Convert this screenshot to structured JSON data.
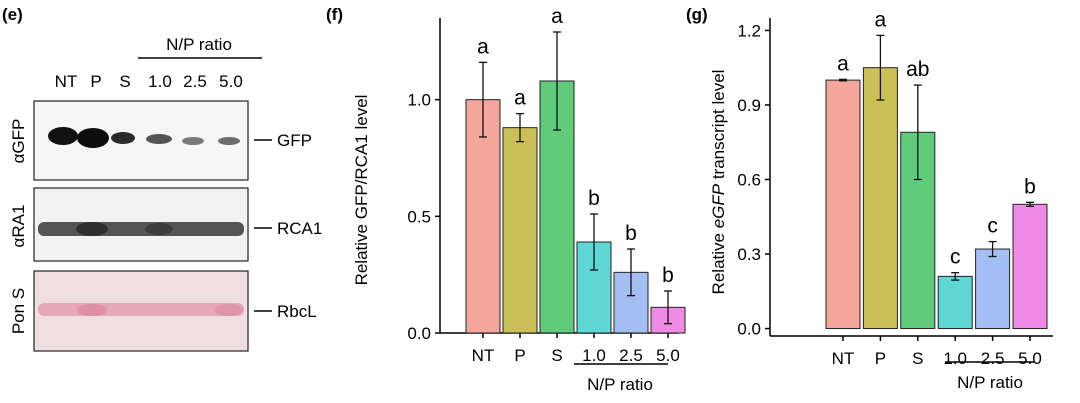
{
  "panels": {
    "e": {
      "label": "(e)",
      "ratio_header": "N/P ratio",
      "lanes": [
        "NT",
        "P",
        "S",
        "1.0",
        "2.5",
        "5.0"
      ],
      "blots": [
        {
          "row_label": "αGFP",
          "band_label": "GFP"
        },
        {
          "row_label": "αRA1",
          "band_label": "RCA1"
        },
        {
          "row_label": "Pon S",
          "band_label": "RbcL"
        }
      ]
    },
    "f": {
      "label": "(f)"
    },
    "g": {
      "label": "(g)",
      "ylabel_pre": "Relative ",
      "ylabel_italic": "eGFP",
      "ylabel_post": " transcript level"
    }
  },
  "colors": {
    "NT": "#f4a59c",
    "P": "#cbbf57",
    "S": "#5fcb7b",
    "1.0": "#5fd7d4",
    "2.5": "#a3bef2",
    "5.0": "#ef8be7"
  },
  "chart_data": [
    {
      "type": "bar",
      "panel": "f",
      "categories": [
        "NT",
        "P",
        "S",
        "1.0",
        "2.5",
        "5.0"
      ],
      "values": [
        1.0,
        0.88,
        1.08,
        0.39,
        0.26,
        0.11
      ],
      "errors": [
        0.16,
        0.06,
        0.21,
        0.12,
        0.1,
        0.07
      ],
      "letters": [
        "a",
        "a",
        "a",
        "b",
        "b",
        "b"
      ],
      "ylabel": "Relative GFP/RCA1 level",
      "xlabel": "N/P ratio",
      "ylim": [
        0,
        1.35
      ],
      "yticks": [
        "0.0",
        "0.5",
        "1.0"
      ]
    },
    {
      "type": "bar",
      "panel": "g",
      "categories": [
        "NT",
        "P",
        "S",
        "1.0",
        "2.5",
        "5.0"
      ],
      "values": [
        1.0,
        1.05,
        0.79,
        0.21,
        0.32,
        0.5
      ],
      "errors": [
        0.003,
        0.13,
        0.19,
        0.015,
        0.03,
        0.008
      ],
      "letters": [
        "a",
        "a",
        "ab",
        "c",
        "c",
        "b"
      ],
      "xlabel": "N/P ratio",
      "ylim": [
        -0.03,
        1.25
      ],
      "yticks": [
        "0.0",
        "0.3",
        "0.6",
        "0.9",
        "1.2"
      ]
    }
  ]
}
